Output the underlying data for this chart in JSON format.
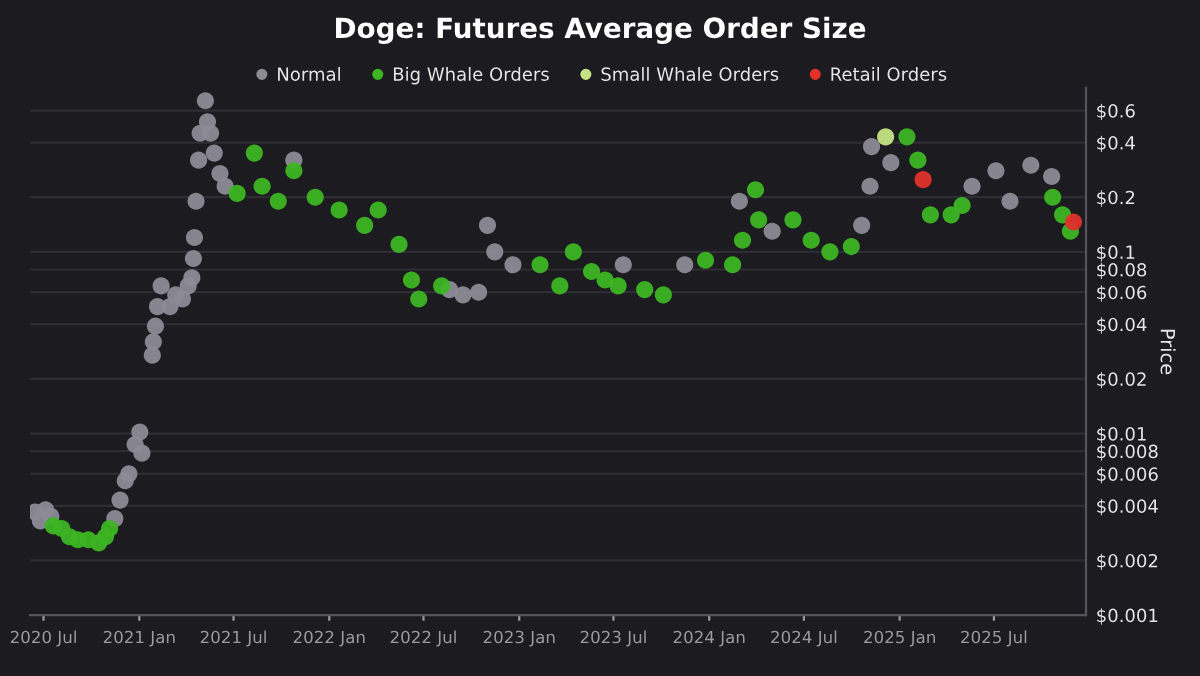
{
  "chart_data": {
    "type": "scatter",
    "title": "Doge: Futures Average Order Size",
    "ylabel": "Price",
    "log": "y",
    "grid": "y",
    "legend": "top",
    "marker": "circle",
    "xlim": [
      "2020-06-05",
      "2025-12-25"
    ],
    "xticks": [
      {
        "value": "2020-07",
        "label": "2020 Jul"
      },
      {
        "value": "2021-01",
        "label": "2021 Jan"
      },
      {
        "value": "2021-07",
        "label": "2021 Jul"
      },
      {
        "value": "2022-01",
        "label": "2022 Jan"
      },
      {
        "value": "2022-07",
        "label": "2022 Jul"
      },
      {
        "value": "2023-01",
        "label": "2023 Jan"
      },
      {
        "value": "2023-07",
        "label": "2023 Jul"
      },
      {
        "value": "2024-01",
        "label": "2024 Jan"
      },
      {
        "value": "2024-07",
        "label": "2024 Jul"
      },
      {
        "value": "2025-01",
        "label": "2025 Jan"
      },
      {
        "value": "2025-07",
        "label": "2025 Jul"
      }
    ],
    "ylim": [
      0.001,
      0.8
    ],
    "yticks": [
      {
        "value": 0.001,
        "label": "$0.001"
      },
      {
        "value": 0.002,
        "label": "$0.002"
      },
      {
        "value": 0.004,
        "label": "$0.004"
      },
      {
        "value": 0.006,
        "label": "$0.006"
      },
      {
        "value": 0.008,
        "label": "$0.008"
      },
      {
        "value": 0.01,
        "label": "$0.01"
      },
      {
        "value": 0.02,
        "label": "$0.02"
      },
      {
        "value": 0.04,
        "label": "$0.04"
      },
      {
        "value": 0.06,
        "label": "$0.06"
      },
      {
        "value": 0.08,
        "label": "$0.08"
      },
      {
        "value": 0.1,
        "label": "$0.1"
      },
      {
        "value": 0.2,
        "label": "$0.2"
      },
      {
        "value": 0.4,
        "label": "$0.4"
      },
      {
        "value": 0.6,
        "label": "$0.6"
      }
    ],
    "series": [
      {
        "name": "Normal",
        "color": "#8c8b96",
        "x": [
          "2020-06-15",
          "2020-06-25",
          "2020-07-05",
          "2020-07-15",
          "2020-11-15",
          "2020-11-25",
          "2020-12-05",
          "2020-12-12",
          "2020-12-24",
          "2021-01-02",
          "2021-01-06",
          "2021-01-26",
          "2021-01-28",
          "2021-02-01",
          "2021-02-05",
          "2021-02-12",
          "2021-03-01",
          "2021-03-12",
          "2021-03-25",
          "2021-04-05",
          "2021-04-12",
          "2021-04-15",
          "2021-04-17",
          "2021-04-20",
          "2021-04-25",
          "2021-04-28",
          "2021-05-08",
          "2021-05-12",
          "2021-05-18",
          "2021-05-25",
          "2021-06-05",
          "2021-06-15",
          "2021-10-25",
          "2022-08-20",
          "2022-09-15",
          "2022-10-15",
          "2022-11-01",
          "2022-11-15",
          "2022-12-20",
          "2023-07-20",
          "2023-11-15",
          "2024-02-28",
          "2024-05-01",
          "2024-10-20",
          "2024-11-05",
          "2024-11-08",
          "2024-12-15",
          "2025-05-20",
          "2025-07-05",
          "2025-08-01",
          "2025-09-10",
          "2025-10-20"
        ],
        "values": [
          0.0037,
          0.0033,
          0.0038,
          0.0035,
          0.0034,
          0.0043,
          0.0055,
          0.006,
          0.0087,
          0.0102,
          0.0078,
          0.027,
          0.032,
          0.039,
          0.05,
          0.065,
          0.05,
          0.058,
          0.055,
          0.065,
          0.072,
          0.092,
          0.12,
          0.19,
          0.32,
          0.45,
          0.68,
          0.52,
          0.45,
          0.35,
          0.27,
          0.23,
          0.32,
          0.062,
          0.058,
          0.06,
          0.14,
          0.1,
          0.085,
          0.085,
          0.085,
          0.19,
          0.13,
          0.14,
          0.23,
          0.38,
          0.31,
          0.23,
          0.28,
          0.19,
          0.3,
          0.26
        ]
      },
      {
        "name": "Big Whale Orders",
        "color": "#3db524",
        "x": [
          "2020-07-20",
          "2020-08-05",
          "2020-08-20",
          "2020-09-05",
          "2020-09-25",
          "2020-10-15",
          "2020-10-28",
          "2020-11-05",
          "2021-07-08",
          "2021-08-10",
          "2021-08-25",
          "2021-09-25",
          "2021-10-25",
          "2021-12-05",
          "2022-01-20",
          "2022-03-10",
          "2022-04-05",
          "2022-05-15",
          "2022-06-08",
          "2022-06-22",
          "2022-08-05",
          "2023-02-10",
          "2023-03-20",
          "2023-04-15",
          "2023-05-20",
          "2023-06-15",
          "2023-07-10",
          "2023-08-30",
          "2023-10-05",
          "2023-12-25",
          "2024-02-15",
          "2024-03-05",
          "2024-03-30",
          "2024-04-05",
          "2024-06-10",
          "2024-07-15",
          "2024-08-20",
          "2024-09-30",
          "2025-01-15",
          "2025-02-05",
          "2025-03-01",
          "2025-04-10",
          "2025-05-01",
          "2025-10-22",
          "2025-11-10",
          "2025-11-25"
        ],
        "values": [
          0.0031,
          0.003,
          0.0027,
          0.0026,
          0.0026,
          0.0025,
          0.0027,
          0.003,
          0.21,
          0.35,
          0.23,
          0.19,
          0.28,
          0.2,
          0.17,
          0.14,
          0.17,
          0.11,
          0.07,
          0.055,
          0.065,
          0.085,
          0.065,
          0.1,
          0.078,
          0.07,
          0.065,
          0.062,
          0.058,
          0.09,
          0.085,
          0.116,
          0.22,
          0.15,
          0.15,
          0.116,
          0.1,
          0.107,
          0.43,
          0.32,
          0.16,
          0.16,
          0.18,
          0.2,
          0.16,
          0.13
        ]
      },
      {
        "name": "Small Whale Orders",
        "color": "#c5e384",
        "x": [
          "2024-12-05"
        ],
        "values": [
          0.43
        ]
      },
      {
        "name": "Retail Orders",
        "color": "#e0322b",
        "x": [
          "2025-02-15",
          "2025-12-01"
        ],
        "values": [
          0.25,
          0.146
        ]
      }
    ]
  }
}
